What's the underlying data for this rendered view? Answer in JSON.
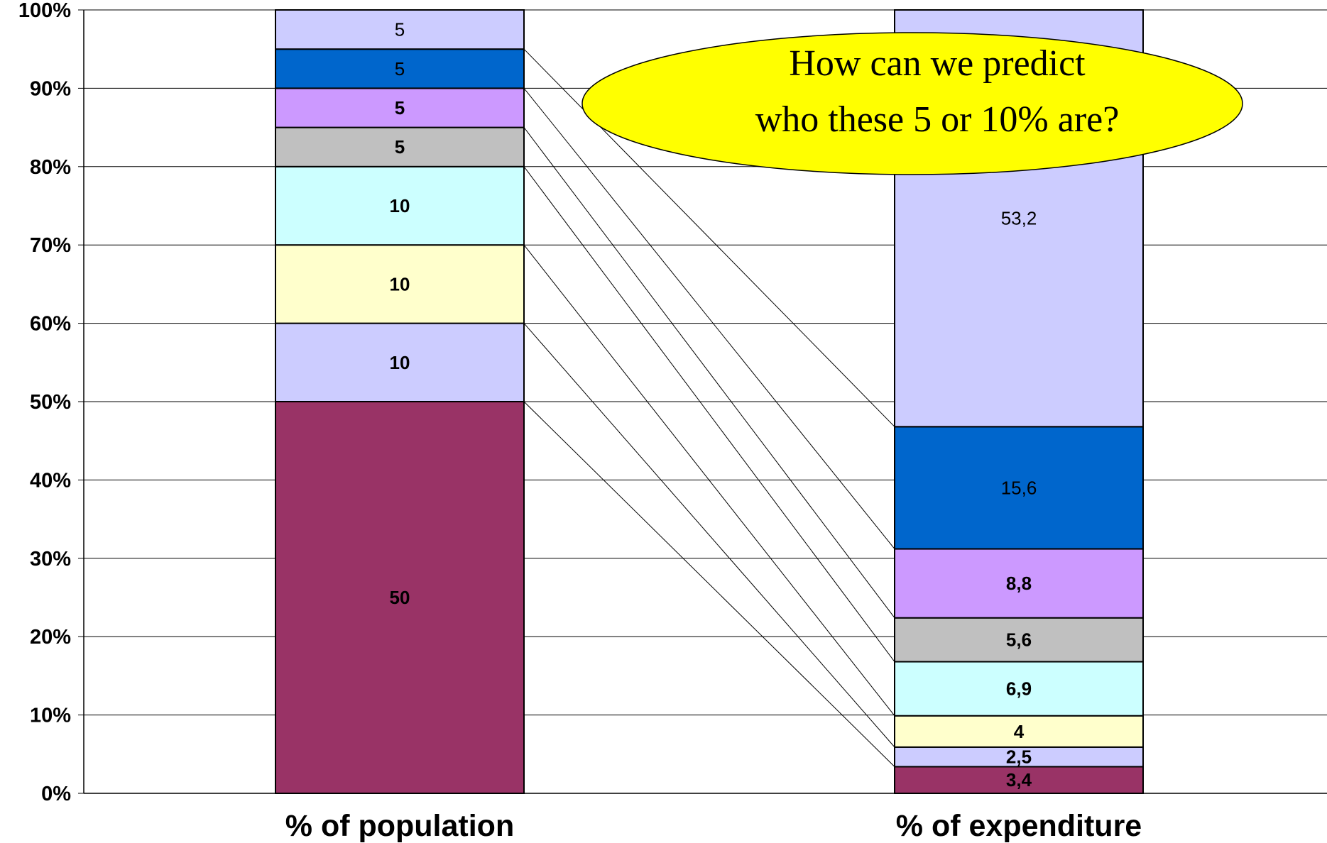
{
  "chart_data": {
    "type": "bar",
    "stacked": true,
    "percent_stacked": true,
    "categories": [
      "% of population",
      "% of expenditure"
    ],
    "series": [
      {
        "values": [
          50,
          3.4
        ],
        "labels": [
          "50",
          "3,4"
        ],
        "color": "#993366",
        "label_bold": true
      },
      {
        "values": [
          10,
          2.5
        ],
        "labels": [
          "10",
          "2,5"
        ],
        "color": "#CCCCFF",
        "label_bold": true
      },
      {
        "values": [
          10,
          4
        ],
        "labels": [
          "10",
          "4"
        ],
        "color": "#FFFFCC",
        "label_bold": true
      },
      {
        "values": [
          10,
          6.9
        ],
        "labels": [
          "10",
          "6,9"
        ],
        "color": "#CCFFFF",
        "label_bold": true
      },
      {
        "values": [
          5,
          5.6
        ],
        "labels": [
          "5",
          "5,6"
        ],
        "color": "#C0C0C0",
        "label_bold": true
      },
      {
        "values": [
          5,
          8.8
        ],
        "labels": [
          "5",
          "8,8"
        ],
        "color": "#CC99FF",
        "label_bold": true
      },
      {
        "values": [
          5,
          15.6
        ],
        "labels": [
          "5",
          "15,6"
        ],
        "color": "#0066CC",
        "label_bold": false
      },
      {
        "values": [
          5,
          53.2
        ],
        "labels": [
          "5",
          "53,2"
        ],
        "color": "#CCCCFF",
        "label_bold": false
      }
    ],
    "y_ticks": [
      "0%",
      "10%",
      "20%",
      "30%",
      "40%",
      "50%",
      "60%",
      "70%",
      "80%",
      "90%",
      "100%"
    ],
    "ylim": [
      0,
      100
    ],
    "grid": true,
    "legend": "none",
    "annotation": {
      "lines": [
        "How can we predict",
        "who these 5 or 10% are?"
      ],
      "fill": "#FFFF00"
    }
  }
}
